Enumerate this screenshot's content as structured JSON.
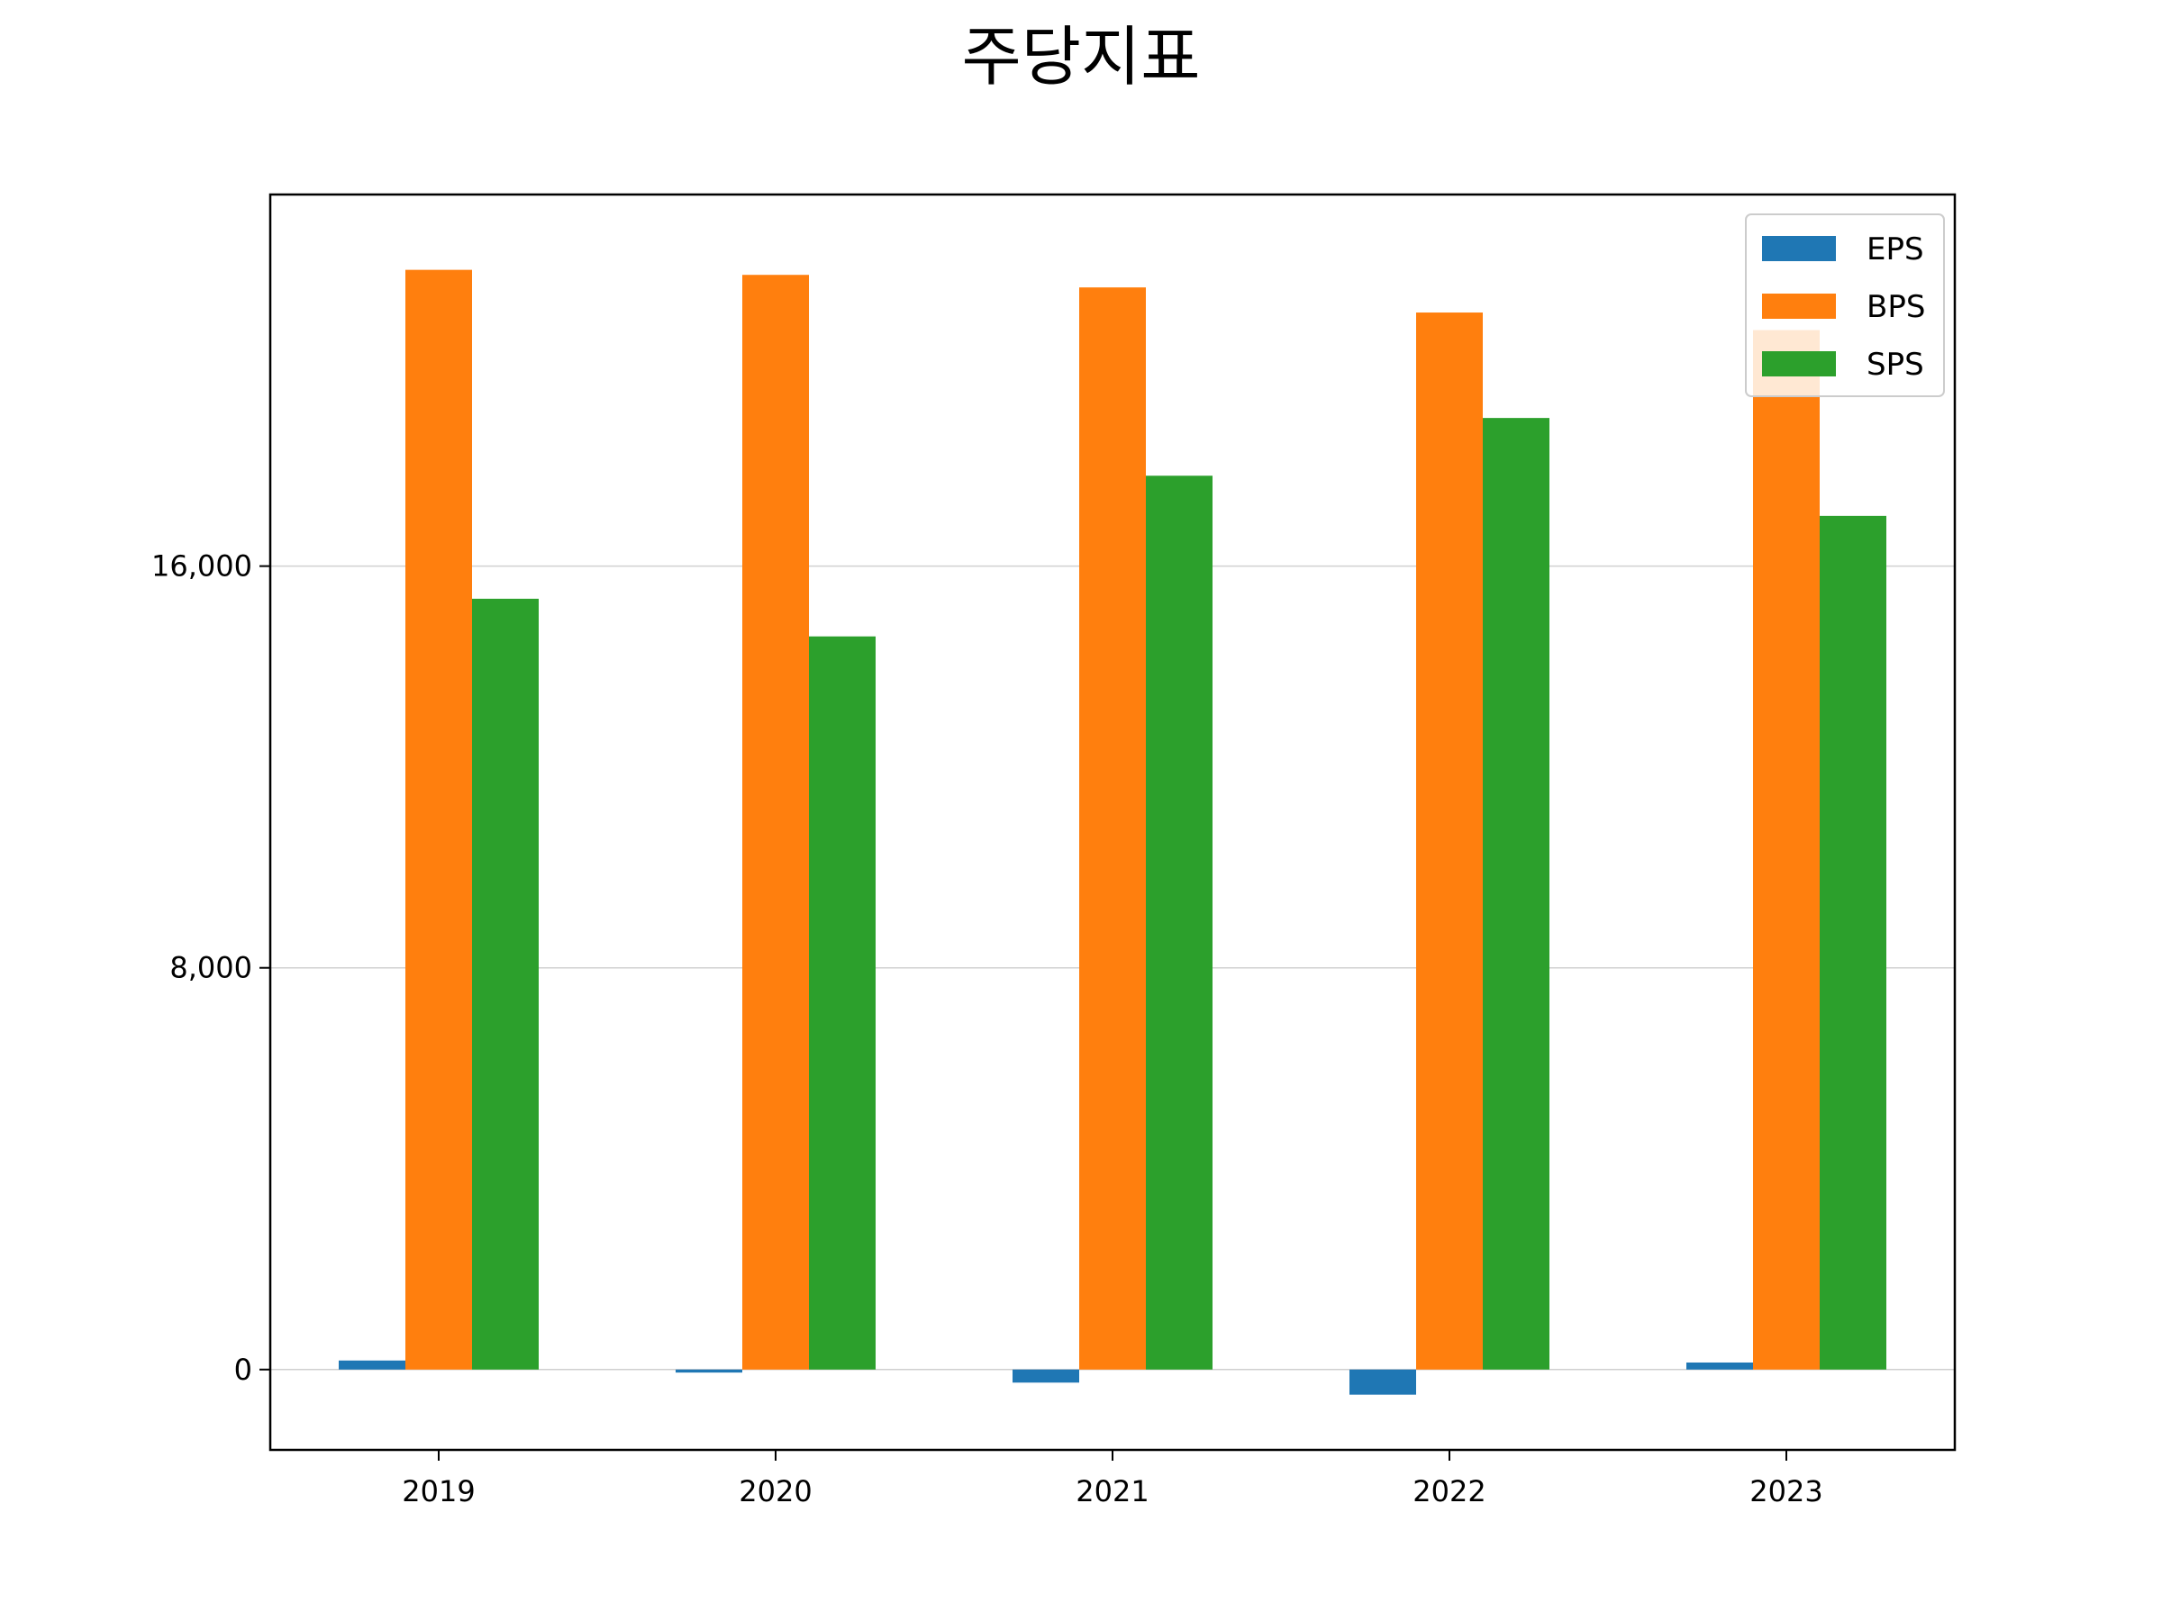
{
  "chart_data": {
    "type": "bar",
    "title": "주당지표",
    "categories": [
      "2019",
      "2020",
      "2021",
      "2022",
      "2023"
    ],
    "series": [
      {
        "name": "EPS",
        "color": "#1f77b4",
        "values": [
          180,
          -60,
          -260,
          -500,
          140
        ]
      },
      {
        "name": "BPS",
        "color": "#ff7f0e",
        "values": [
          21900,
          21800,
          21550,
          21050,
          20700
        ]
      },
      {
        "name": "SPS",
        "color": "#2ca02c",
        "values": [
          15350,
          14600,
          17800,
          18950,
          17000
        ]
      }
    ],
    "ylim": [
      -1600,
      23400
    ],
    "yticks": [
      0,
      8000,
      16000
    ],
    "ytick_labels": [
      "0",
      "8,000",
      "16,000"
    ],
    "grid": "y",
    "legend": "top-right"
  }
}
